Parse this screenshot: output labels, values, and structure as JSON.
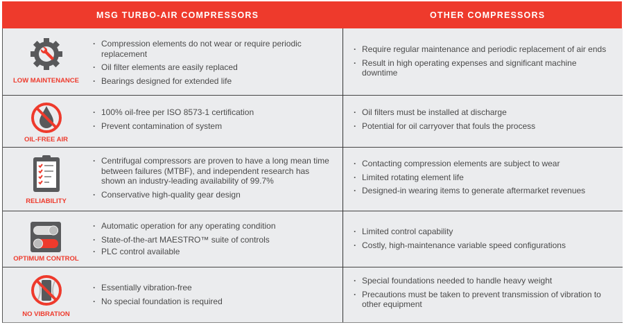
{
  "header": {
    "left": "MSG TURBO-AIR COMPRESSORS",
    "right": "OTHER COMPRESSORS"
  },
  "colors": {
    "accent": "#ee3a2c",
    "icon_gray": "#58595b",
    "background": "#ebecee"
  },
  "rows": [
    {
      "label": "LOW MAINTENANCE",
      "icon": "gear-wrench-icon",
      "msg": [
        "Compression elements do not wear or require periodic replacement",
        "Oil filter elements are easily replaced",
        "Bearings designed for extended life"
      ],
      "other": [
        "Require regular maintenance and periodic replacement of air ends",
        "Result in high operating expenses and significant machine downtime"
      ]
    },
    {
      "label": "OIL-FREE AIR",
      "icon": "no-oil-drop-icon",
      "msg": [
        "100% oil-free per ISO 8573-1 certification",
        "Prevent contamination of system"
      ],
      "other": [
        "Oil filters must be installed at discharge",
        "Potential for oil carryover that fouls the process"
      ]
    },
    {
      "label": "RELIABILITY",
      "icon": "clipboard-checklist-icon",
      "msg": [
        "Centrifugal compressors are proven to have a long mean time between failures (MTBF), and independent research has shown an industry-leading availability of 99.7%",
        "Conservative high-quality gear design"
      ],
      "other": [
        "Contacting compression elements are subject to wear",
        "Limited rotating element life",
        "Designed-in wearing items to generate aftermarket revenues"
      ]
    },
    {
      "label": "OPTIMUM CONTROL",
      "icon": "toggle-switches-icon",
      "msg": [
        "Automatic operation for any operating condition",
        "State-of-the-art MAESTRO™ suite of controls",
        "PLC control available"
      ],
      "other": [
        "Limited control capability",
        "Costly, high-maintenance variable speed configurations"
      ]
    },
    {
      "label": "NO VIBRATION",
      "icon": "no-vibration-icon",
      "msg": [
        "Essentially vibration-free",
        "No special foundation is required"
      ],
      "other": [
        "Special foundations needed to handle heavy weight",
        "Precautions must be taken to prevent transmission of vibration to other equipment"
      ]
    }
  ]
}
